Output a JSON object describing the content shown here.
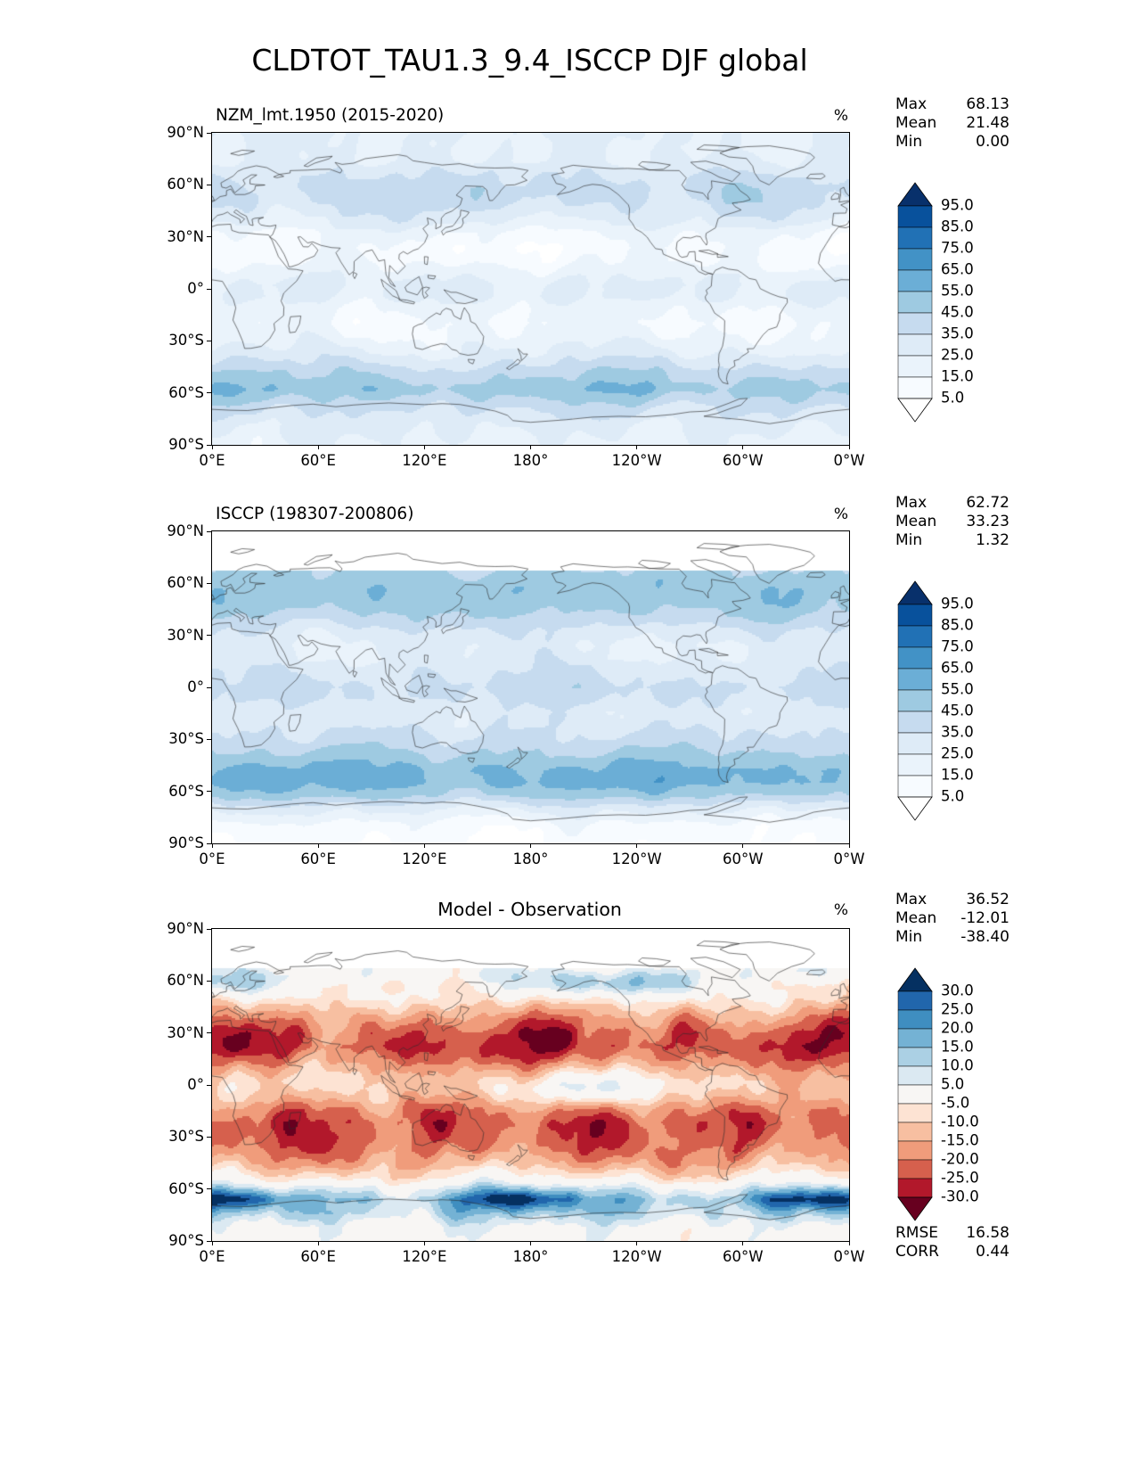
{
  "title": "CLDTOT_TAU1.3_9.4_ISCCP DJF global",
  "axes": {
    "x_tick_labels": [
      "0°E",
      "60°E",
      "120°E",
      "180°",
      "120°W",
      "60°W",
      "0°W"
    ],
    "y_tick_labels": [
      "90°N",
      "60°N",
      "30°N",
      "0°",
      "30°S",
      "60°S",
      "90°S"
    ]
  },
  "panels": [
    {
      "title": "NZM_lmt.1950 (2015-2020)",
      "units": "%",
      "stats": [
        [
          "Max",
          "68.13"
        ],
        [
          "Mean",
          "21.48"
        ],
        [
          "Min",
          "0.00"
        ]
      ],
      "colorbar": {
        "boundary_labels": [
          "95.0",
          "85.0",
          "75.0",
          "65.0",
          "55.0",
          "45.0",
          "35.0",
          "25.0",
          "15.0",
          "5.0"
        ],
        "edges": [
          5,
          15,
          25,
          35,
          45,
          55,
          65,
          75,
          85,
          95
        ],
        "colors_low_to_high": [
          "#f7fbff",
          "#eaf3fb",
          "#deebf7",
          "#c6dbef",
          "#9ecae1",
          "#6baed6",
          "#4292c6",
          "#2171b5",
          "#08519c"
        ],
        "under_color": "#ffffff",
        "over_color": "#08306b"
      }
    },
    {
      "title": "ISCCP (198307-200806)",
      "units": "%",
      "stats": [
        [
          "Max",
          "62.72"
        ],
        [
          "Mean",
          "33.23"
        ],
        [
          "Min",
          "1.32"
        ]
      ],
      "colorbar": {
        "boundary_labels": [
          "95.0",
          "85.0",
          "75.0",
          "65.0",
          "55.0",
          "45.0",
          "35.0",
          "25.0",
          "15.0",
          "5.0"
        ],
        "edges": [
          5,
          15,
          25,
          35,
          45,
          55,
          65,
          75,
          85,
          95
        ],
        "colors_low_to_high": [
          "#f7fbff",
          "#eaf3fb",
          "#deebf7",
          "#c6dbef",
          "#9ecae1",
          "#6baed6",
          "#4292c6",
          "#2171b5",
          "#08519c"
        ],
        "under_color": "#ffffff",
        "over_color": "#08306b"
      }
    },
    {
      "title": "Model - Observation",
      "units": "%",
      "stats": [
        [
          "Max",
          "36.52"
        ],
        [
          "Mean",
          "-12.01"
        ],
        [
          "Min",
          "-38.40"
        ]
      ],
      "extra_stats": [
        [
          "RMSE",
          "16.58"
        ],
        [
          "CORR",
          "0.44"
        ]
      ],
      "colorbar": {
        "boundary_labels": [
          "30.0",
          "25.0",
          "20.0",
          "15.0",
          "10.0",
          "5.0",
          "-5.0",
          "-10.0",
          "-15.0",
          "-20.0",
          "-25.0",
          "-30.0"
        ],
        "edges": [
          -30,
          -25,
          -20,
          -15,
          -10,
          -5,
          5,
          10,
          15,
          20,
          25,
          30
        ],
        "colors_low_to_high": [
          "#b2182b",
          "#d6604d",
          "#f09c7b",
          "#f7bfa1",
          "#fde3d3",
          "#f8f6f4",
          "#dbe9f2",
          "#abd0e4",
          "#74b2d4",
          "#3f8ec0",
          "#2166ac"
        ],
        "under_color": "#67001f",
        "over_color": "#053061"
      }
    }
  ],
  "chart_data": [
    {
      "type": "heatmap",
      "subtype": "filled-contour-global-map",
      "title": "NZM_lmt.1950 (2015-2020)",
      "units": "%",
      "projection": "equirectangular",
      "lon_extent_labels": [
        "0°E",
        "0°W"
      ],
      "lat_extent": [
        -90,
        90
      ],
      "contour_levels": [
        5,
        15,
        25,
        35,
        45,
        55,
        65,
        75,
        85,
        95
      ],
      "colormap": "Blues (white to dark navy), extend both",
      "stats": {
        "max": 68.13,
        "mean": 21.48,
        "min": 0.0
      },
      "approx_zonal_mean": {
        "lat": [
          -90,
          -78,
          -68,
          -58,
          -48,
          -38,
          -28,
          -20,
          -12,
          -4,
          2,
          8,
          16,
          24,
          32,
          40,
          50,
          58,
          66,
          74,
          82,
          90
        ],
        "value": [
          22,
          28,
          38,
          52,
          42,
          28,
          18,
          14,
          18,
          26,
          27,
          22,
          13,
          10,
          16,
          28,
          38,
          40,
          34,
          26,
          24,
          26
        ]
      }
    },
    {
      "type": "heatmap",
      "subtype": "filled-contour-global-map",
      "title": "ISCCP (198307-200806)",
      "units": "%",
      "projection": "equirectangular",
      "lon_extent_labels": [
        "0°E",
        "0°W"
      ],
      "lat_extent": [
        -90,
        90
      ],
      "data_gap": "no data north of ~68N (white)",
      "contour_levels": [
        5,
        15,
        25,
        35,
        45,
        55,
        65,
        75,
        85,
        95
      ],
      "colormap": "Blues (white to dark navy), extend both",
      "stats": {
        "max": 62.72,
        "mean": 33.23,
        "min": 1.32
      },
      "approx_zonal_mean": {
        "lat": [
          -90,
          -80,
          -70,
          -62,
          -55,
          -48,
          -40,
          -30,
          -22,
          -14,
          -6,
          0,
          8,
          16,
          24,
          32,
          40,
          48,
          56,
          62,
          67
        ],
        "value": [
          6,
          10,
          28,
          48,
          58,
          58,
          48,
          38,
          32,
          30,
          36,
          38,
          34,
          28,
          26,
          32,
          42,
          50,
          52,
          50,
          46
        ]
      }
    },
    {
      "type": "heatmap",
      "subtype": "filled-contour-global-difference-map",
      "title": "Model - Observation",
      "units": "%",
      "projection": "equirectangular",
      "lon_extent_labels": [
        "0°E",
        "0°W"
      ],
      "lat_extent": [
        -90,
        90
      ],
      "data_gap": "no data north of ~68N (white)",
      "contour_levels": [
        -30,
        -25,
        -20,
        -15,
        -10,
        -5,
        5,
        10,
        15,
        20,
        25,
        30
      ],
      "colormap": "RdBu (red negative, blue positive), extend both",
      "stats": {
        "max": 36.52,
        "mean": -12.01,
        "min": -38.4,
        "rmse": 16.58,
        "corr": 0.44
      },
      "approx_zonal_mean": {
        "lat": [
          -90,
          -82,
          -74,
          -66,
          -60,
          -54,
          -46,
          -38,
          -30,
          -22,
          -14,
          -8,
          -2,
          2,
          8,
          14,
          22,
          30,
          38,
          46,
          52,
          58,
          63,
          67
        ],
        "value": [
          1,
          3,
          12,
          16,
          8,
          -4,
          -14,
          -20,
          -23,
          -24,
          -20,
          -14,
          -10,
          -10,
          -14,
          -20,
          -26,
          -24,
          -18,
          -10,
          -2,
          4,
          6,
          3
        ]
      }
    }
  ]
}
